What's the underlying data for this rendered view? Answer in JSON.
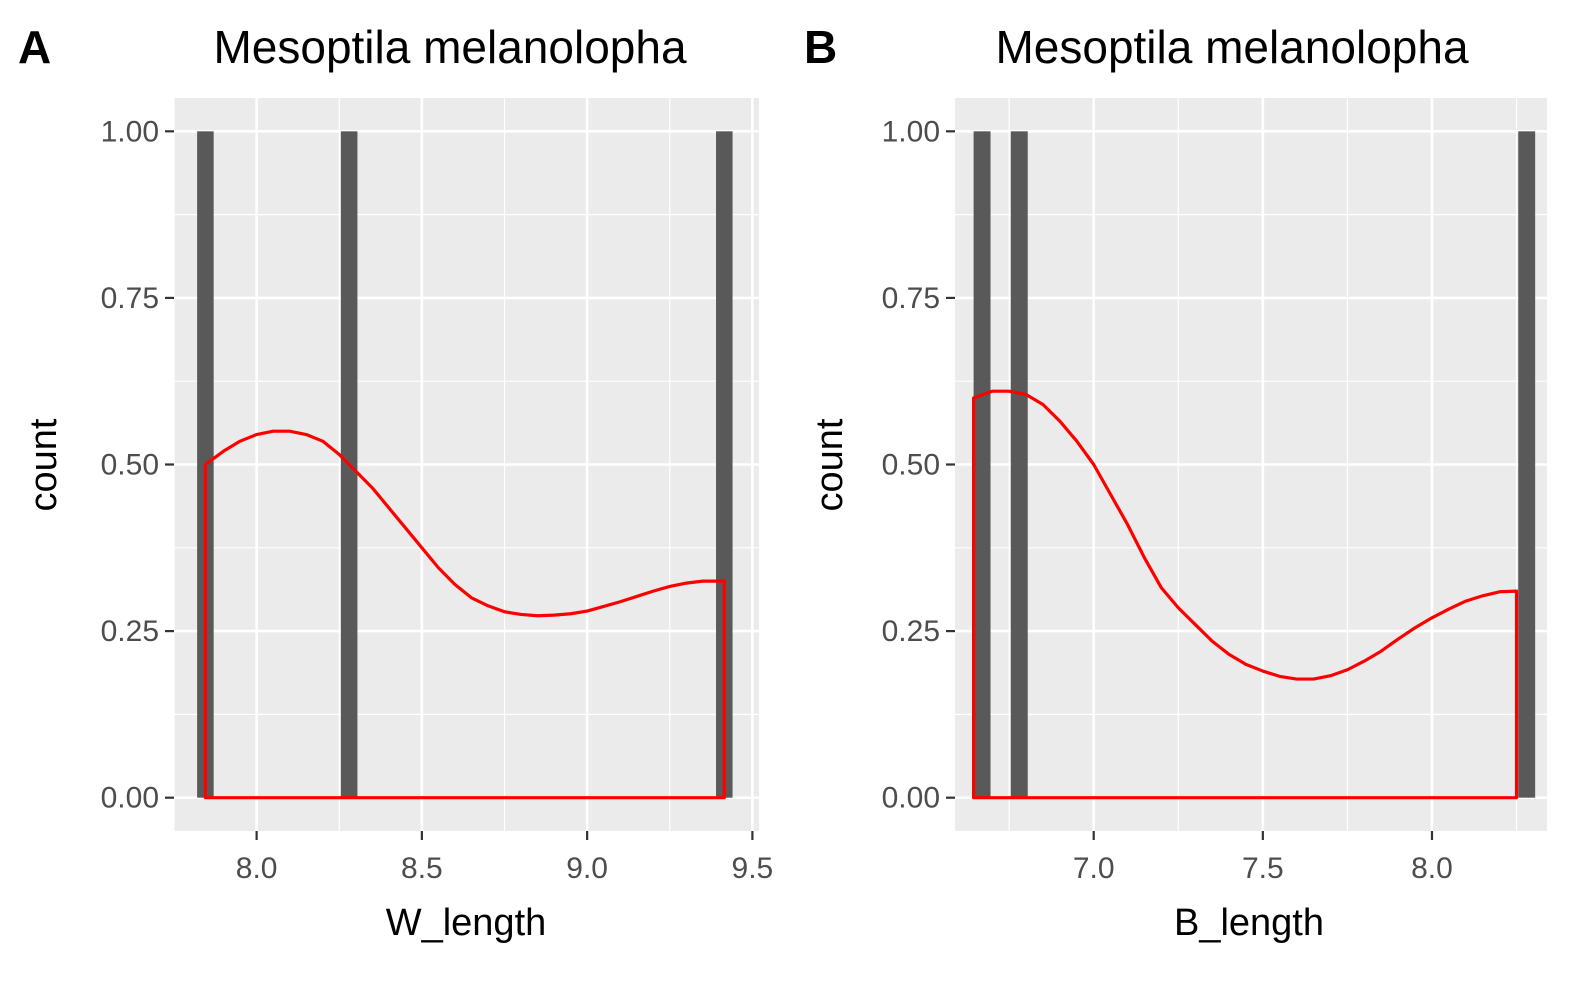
{
  "chart_data": [
    {
      "type": "bar",
      "panel_label": "A",
      "title": "Mesoptila melanolopha",
      "xlabel": "W_length",
      "ylabel": "count",
      "xlim": [
        7.75,
        9.52
      ],
      "ylim": [
        -0.05,
        1.05
      ],
      "x_ticks": [
        8.0,
        8.5,
        9.0,
        9.5
      ],
      "x_tick_labels": [
        "8.0",
        "8.5",
        "9.0",
        "9.5"
      ],
      "y_ticks": [
        0,
        0.25,
        0.5,
        0.75,
        1.0
      ],
      "y_tick_labels": [
        "0.00",
        "0.25",
        "0.50",
        "0.75",
        "1.00"
      ],
      "bars": [
        {
          "x": 7.845,
          "count": 1
        },
        {
          "x": 8.28,
          "count": 1
        },
        {
          "x": 9.415,
          "count": 1
        }
      ],
      "bar_width": 0.05,
      "density": {
        "x": [
          7.845,
          7.9,
          7.95,
          8.0,
          8.05,
          8.1,
          8.15,
          8.2,
          8.25,
          8.3,
          8.35,
          8.4,
          8.45,
          8.5,
          8.55,
          8.6,
          8.65,
          8.7,
          8.75,
          8.8,
          8.85,
          8.9,
          8.95,
          9.0,
          9.05,
          9.1,
          9.15,
          9.2,
          9.25,
          9.3,
          9.35,
          9.4,
          9.415
        ],
        "y": [
          0.5,
          0.52,
          0.535,
          0.545,
          0.55,
          0.55,
          0.545,
          0.535,
          0.515,
          0.49,
          0.465,
          0.435,
          0.405,
          0.375,
          0.345,
          0.32,
          0.3,
          0.288,
          0.279,
          0.275,
          0.273,
          0.274,
          0.276,
          0.28,
          0.287,
          0.294,
          0.302,
          0.31,
          0.317,
          0.322,
          0.325,
          0.325,
          0.325
        ]
      },
      "colors": {
        "bars": "#595959",
        "density": "#ff0000",
        "panel": "#ebebeb",
        "grid": "#ffffff"
      }
    },
    {
      "type": "bar",
      "panel_label": "B",
      "title": "Mesoptila melanolopha",
      "xlabel": "B_length",
      "ylabel": "count",
      "xlim": [
        6.59,
        8.34
      ],
      "ylim": [
        -0.05,
        1.05
      ],
      "x_ticks": [
        7.0,
        7.5,
        8.0
      ],
      "x_tick_labels": [
        "7.0",
        "7.5",
        "8.0"
      ],
      "y_ticks": [
        0,
        0.25,
        0.5,
        0.75,
        1.0
      ],
      "y_tick_labels": [
        "0.00",
        "0.25",
        "0.50",
        "0.75",
        "1.00"
      ],
      "bars": [
        {
          "x": 6.67,
          "count": 1
        },
        {
          "x": 6.78,
          "count": 1
        },
        {
          "x": 8.28,
          "count": 1
        }
      ],
      "bar_width": 0.05,
      "density": {
        "x": [
          6.645,
          6.7,
          6.75,
          6.8,
          6.85,
          6.9,
          6.95,
          7.0,
          7.05,
          7.1,
          7.15,
          7.2,
          7.25,
          7.3,
          7.35,
          7.4,
          7.45,
          7.5,
          7.55,
          7.6,
          7.65,
          7.7,
          7.75,
          7.8,
          7.85,
          7.9,
          7.95,
          8.0,
          8.05,
          8.1,
          8.15,
          8.2,
          8.25
        ],
        "y": [
          0.6,
          0.61,
          0.61,
          0.605,
          0.59,
          0.565,
          0.535,
          0.5,
          0.455,
          0.41,
          0.36,
          0.315,
          0.285,
          0.26,
          0.235,
          0.215,
          0.2,
          0.19,
          0.182,
          0.178,
          0.178,
          0.183,
          0.192,
          0.205,
          0.22,
          0.238,
          0.255,
          0.27,
          0.283,
          0.295,
          0.303,
          0.309,
          0.31
        ]
      },
      "colors": {
        "bars": "#595959",
        "density": "#ff0000",
        "panel": "#ebebeb",
        "grid": "#ffffff"
      }
    }
  ]
}
